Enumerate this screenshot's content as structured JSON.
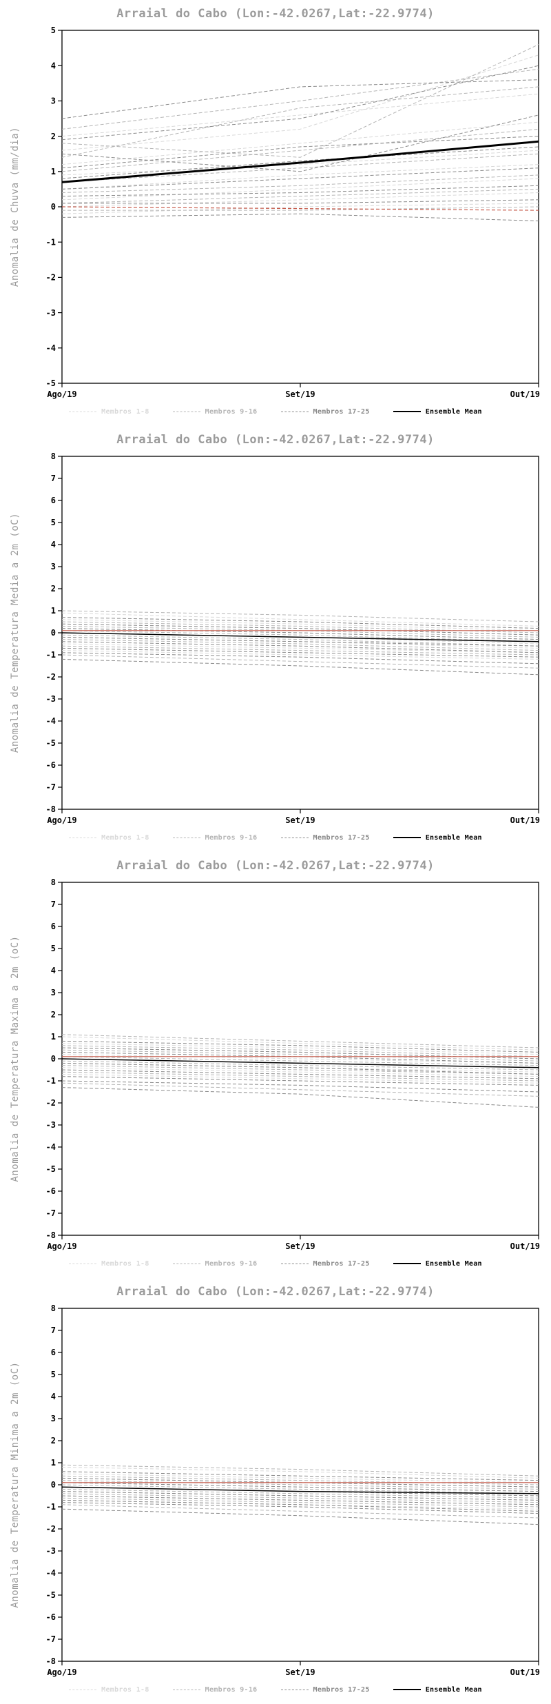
{
  "chart_data": [
    {
      "type": "line",
      "title": "Arraial do Cabo (Lon:-42.0267,Lat:-22.9774)",
      "ylabel": "Anomalia de Chuva (mm/dia)",
      "x_ticklabels": [
        "Ago/19",
        "Set/19",
        "Out/19"
      ],
      "ylim": [
        -5,
        5
      ],
      "ytick_step": 1,
      "grid": false,
      "legend_position": "bottom",
      "groups": [
        {
          "name": "Membros 1-8",
          "color": "#d8d8d8",
          "dash": "5,3",
          "members": [
            [
              2.0,
              2.6,
              3.2
            ],
            [
              1.6,
              2.2,
              4.3
            ],
            [
              1.2,
              1.8,
              2.4
            ],
            [
              0.9,
              1.2,
              1.6
            ],
            [
              0.5,
              0.9,
              1.2
            ],
            [
              0.2,
              0.5,
              0.8
            ],
            [
              0.0,
              0.2,
              0.4
            ],
            [
              -0.2,
              0.0,
              0.1
            ]
          ]
        },
        {
          "name": "Membros 9-16",
          "color": "#b4b4b4",
          "dash": "5,3",
          "members": [
            [
              2.2,
              3.0,
              3.9
            ],
            [
              1.8,
              1.4,
              4.6
            ],
            [
              1.4,
              2.8,
              3.4
            ],
            [
              1.0,
              1.6,
              2.2
            ],
            [
              0.7,
              1.1,
              1.5
            ],
            [
              0.4,
              0.6,
              0.9
            ],
            [
              0.1,
              0.3,
              0.5
            ],
            [
              -0.1,
              -0.1,
              0.0
            ]
          ]
        },
        {
          "name": "Membros 17-25",
          "color": "#8a8a8a",
          "dash": "5,3",
          "members": [
            [
              2.5,
              3.4,
              3.6
            ],
            [
              1.9,
              2.5,
              4.0
            ],
            [
              1.5,
              1.0,
              2.6
            ],
            [
              1.1,
              1.7,
              2.0
            ],
            [
              0.8,
              1.3,
              1.7
            ],
            [
              0.5,
              0.8,
              1.1
            ],
            [
              0.3,
              0.4,
              0.6
            ],
            [
              0.1,
              0.1,
              0.2
            ],
            [
              -0.3,
              -0.2,
              -0.4
            ]
          ]
        }
      ],
      "ensemble_mean": {
        "name": "Ensemble Mean",
        "color": "#000000",
        "width": 3,
        "values": [
          0.7,
          1.25,
          1.85
        ]
      },
      "reference_line": {
        "color": "#c65a4a",
        "dash": "5,3",
        "width": 1.2,
        "values": [
          0.0,
          -0.05,
          -0.1
        ]
      }
    },
    {
      "type": "line",
      "title": "Arraial do Cabo (Lon:-42.0267,Lat:-22.9774)",
      "ylabel": "Anomalia de Temperatura Media a 2m (oC)",
      "x_ticklabels": [
        "Ago/19",
        "Set/19",
        "Out/19"
      ],
      "ylim": [
        -8,
        8
      ],
      "ytick_step": 1,
      "grid": false,
      "legend_position": "bottom",
      "groups": [
        {
          "name": "Membros 1-8",
          "color": "#d8d8d8",
          "dash": "5,3",
          "members": [
            [
              0.9,
              0.6,
              0.3
            ],
            [
              0.6,
              0.4,
              0.1
            ],
            [
              0.4,
              0.2,
              -0.1
            ],
            [
              0.2,
              0.0,
              -0.3
            ],
            [
              0.0,
              -0.2,
              -0.5
            ],
            [
              -0.2,
              -0.4,
              -0.7
            ],
            [
              -0.5,
              -0.7,
              -0.9
            ],
            [
              -0.8,
              -1.0,
              -1.2
            ]
          ]
        },
        {
          "name": "Membros 9-16",
          "color": "#b4b4b4",
          "dash": "5,3",
          "members": [
            [
              1.0,
              0.8,
              0.5
            ],
            [
              0.5,
              0.3,
              0.0
            ],
            [
              0.3,
              0.1,
              -0.2
            ],
            [
              0.1,
              -0.1,
              -0.4
            ],
            [
              -0.1,
              -0.3,
              -0.6
            ],
            [
              -0.3,
              -0.5,
              -0.8
            ],
            [
              -0.6,
              -0.8,
              -1.0
            ],
            [
              -1.0,
              -1.3,
              -1.6
            ]
          ]
        },
        {
          "name": "Membros 17-25",
          "color": "#8a8a8a",
          "dash": "5,3",
          "members": [
            [
              0.7,
              0.5,
              0.2
            ],
            [
              0.4,
              0.2,
              -0.1
            ],
            [
              0.2,
              0.0,
              -0.3
            ],
            [
              0.0,
              -0.2,
              -0.4
            ],
            [
              -0.2,
              -0.4,
              -0.6
            ],
            [
              -0.4,
              -0.6,
              -0.9
            ],
            [
              -0.7,
              -0.9,
              -1.1
            ],
            [
              -0.9,
              -1.1,
              -1.4
            ],
            [
              -1.2,
              -1.5,
              -1.9
            ]
          ]
        }
      ],
      "ensemble_mean": {
        "name": "Ensemble Mean",
        "color": "#000000",
        "width": 1.5,
        "values": [
          0.0,
          -0.2,
          -0.4
        ]
      },
      "reference_line": {
        "color": "#c65a4a",
        "dash": "",
        "width": 1.2,
        "values": [
          0.1,
          0.1,
          0.1
        ]
      }
    },
    {
      "type": "line",
      "title": "Arraial do Cabo (Lon:-42.0267,Lat:-22.9774)",
      "ylabel": "Anomalia de Temperatura Maxima a 2m (oC)",
      "x_ticklabels": [
        "Ago/19",
        "Set/19",
        "Out/19"
      ],
      "ylim": [
        -8,
        8
      ],
      "ytick_step": 1,
      "grid": false,
      "legend_position": "bottom",
      "groups": [
        {
          "name": "Membros 1-8",
          "color": "#d8d8d8",
          "dash": "5,3",
          "members": [
            [
              1.0,
              0.7,
              0.4
            ],
            [
              0.7,
              0.5,
              0.2
            ],
            [
              0.5,
              0.3,
              0.0
            ],
            [
              0.2,
              0.0,
              -0.2
            ],
            [
              0.0,
              -0.2,
              -0.4
            ],
            [
              -0.2,
              -0.4,
              -0.6
            ],
            [
              -0.4,
              -0.6,
              -0.8
            ],
            [
              -0.7,
              -0.9,
              -1.1
            ]
          ]
        },
        {
          "name": "Membros 9-16",
          "color": "#b4b4b4",
          "dash": "5,3",
          "members": [
            [
              1.1,
              0.8,
              0.5
            ],
            [
              0.6,
              0.4,
              0.1
            ],
            [
              0.4,
              0.2,
              -0.1
            ],
            [
              0.1,
              -0.1,
              -0.3
            ],
            [
              -0.1,
              -0.3,
              -0.5
            ],
            [
              -0.3,
              -0.5,
              -0.7
            ],
            [
              -0.6,
              -0.8,
              -1.0
            ],
            [
              -1.1,
              -1.4,
              -1.7
            ]
          ]
        },
        {
          "name": "Membros 17-25",
          "color": "#8a8a8a",
          "dash": "5,3",
          "members": [
            [
              0.8,
              0.6,
              0.3
            ],
            [
              0.5,
              0.3,
              0.0
            ],
            [
              0.3,
              0.1,
              -0.2
            ],
            [
              0.0,
              -0.2,
              -0.4
            ],
            [
              -0.2,
              -0.4,
              -0.7
            ],
            [
              -0.5,
              -0.7,
              -0.9
            ],
            [
              -0.8,
              -1.0,
              -1.2
            ],
            [
              -1.0,
              -1.2,
              -1.5
            ],
            [
              -1.3,
              -1.6,
              -2.2
            ]
          ]
        }
      ],
      "ensemble_mean": {
        "name": "Ensemble Mean",
        "color": "#000000",
        "width": 1.5,
        "values": [
          0.0,
          -0.2,
          -0.4
        ]
      },
      "reference_line": {
        "color": "#c65a4a",
        "dash": "",
        "width": 1.2,
        "values": [
          0.1,
          0.1,
          0.1
        ]
      }
    },
    {
      "type": "line",
      "title": "Arraial do Cabo (Lon:-42.0267,Lat:-22.9774)",
      "ylabel": "Anomalia de Temperatura Minima a 2m (oC)",
      "x_ticklabels": [
        "Ago/19",
        "Set/19",
        "Out/19"
      ],
      "ylim": [
        -8,
        8
      ],
      "ytick_step": 1,
      "grid": false,
      "legend_position": "bottom",
      "groups": [
        {
          "name": "Membros 1-8",
          "color": "#d8d8d8",
          "dash": "5,3",
          "members": [
            [
              0.8,
              0.6,
              0.3
            ],
            [
              0.5,
              0.3,
              0.1
            ],
            [
              0.3,
              0.1,
              -0.1
            ],
            [
              0.1,
              -0.1,
              -0.3
            ],
            [
              -0.1,
              -0.3,
              -0.5
            ],
            [
              -0.3,
              -0.5,
              -0.7
            ],
            [
              -0.5,
              -0.7,
              -0.9
            ],
            [
              -0.7,
              -0.9,
              -1.1
            ]
          ]
        },
        {
          "name": "Membros 9-16",
          "color": "#b4b4b4",
          "dash": "5,3",
          "members": [
            [
              0.9,
              0.7,
              0.4
            ],
            [
              0.4,
              0.2,
              0.0
            ],
            [
              0.2,
              0.0,
              -0.2
            ],
            [
              0.0,
              -0.2,
              -0.4
            ],
            [
              -0.2,
              -0.4,
              -0.6
            ],
            [
              -0.4,
              -0.6,
              -0.8
            ],
            [
              -0.6,
              -0.8,
              -1.0
            ],
            [
              -0.9,
              -1.2,
              -1.5
            ]
          ]
        },
        {
          "name": "Membros 17-25",
          "color": "#8a8a8a",
          "dash": "5,3",
          "members": [
            [
              0.6,
              0.4,
              0.2
            ],
            [
              0.3,
              0.1,
              -0.1
            ],
            [
              0.1,
              -0.1,
              -0.3
            ],
            [
              -0.1,
              -0.3,
              -0.5
            ],
            [
              -0.3,
              -0.5,
              -0.7
            ],
            [
              -0.5,
              -0.7,
              -0.9
            ],
            [
              -0.7,
              -0.9,
              -1.2
            ],
            [
              -0.8,
              -1.0,
              -1.3
            ],
            [
              -1.1,
              -1.4,
              -1.8
            ]
          ]
        }
      ],
      "ensemble_mean": {
        "name": "Ensemble Mean",
        "color": "#000000",
        "width": 1.5,
        "values": [
          -0.1,
          -0.3,
          -0.4
        ]
      },
      "reference_line": {
        "color": "#c65a4a",
        "dash": "",
        "width": 1.2,
        "values": [
          0.1,
          0.1,
          0.1
        ]
      }
    }
  ]
}
